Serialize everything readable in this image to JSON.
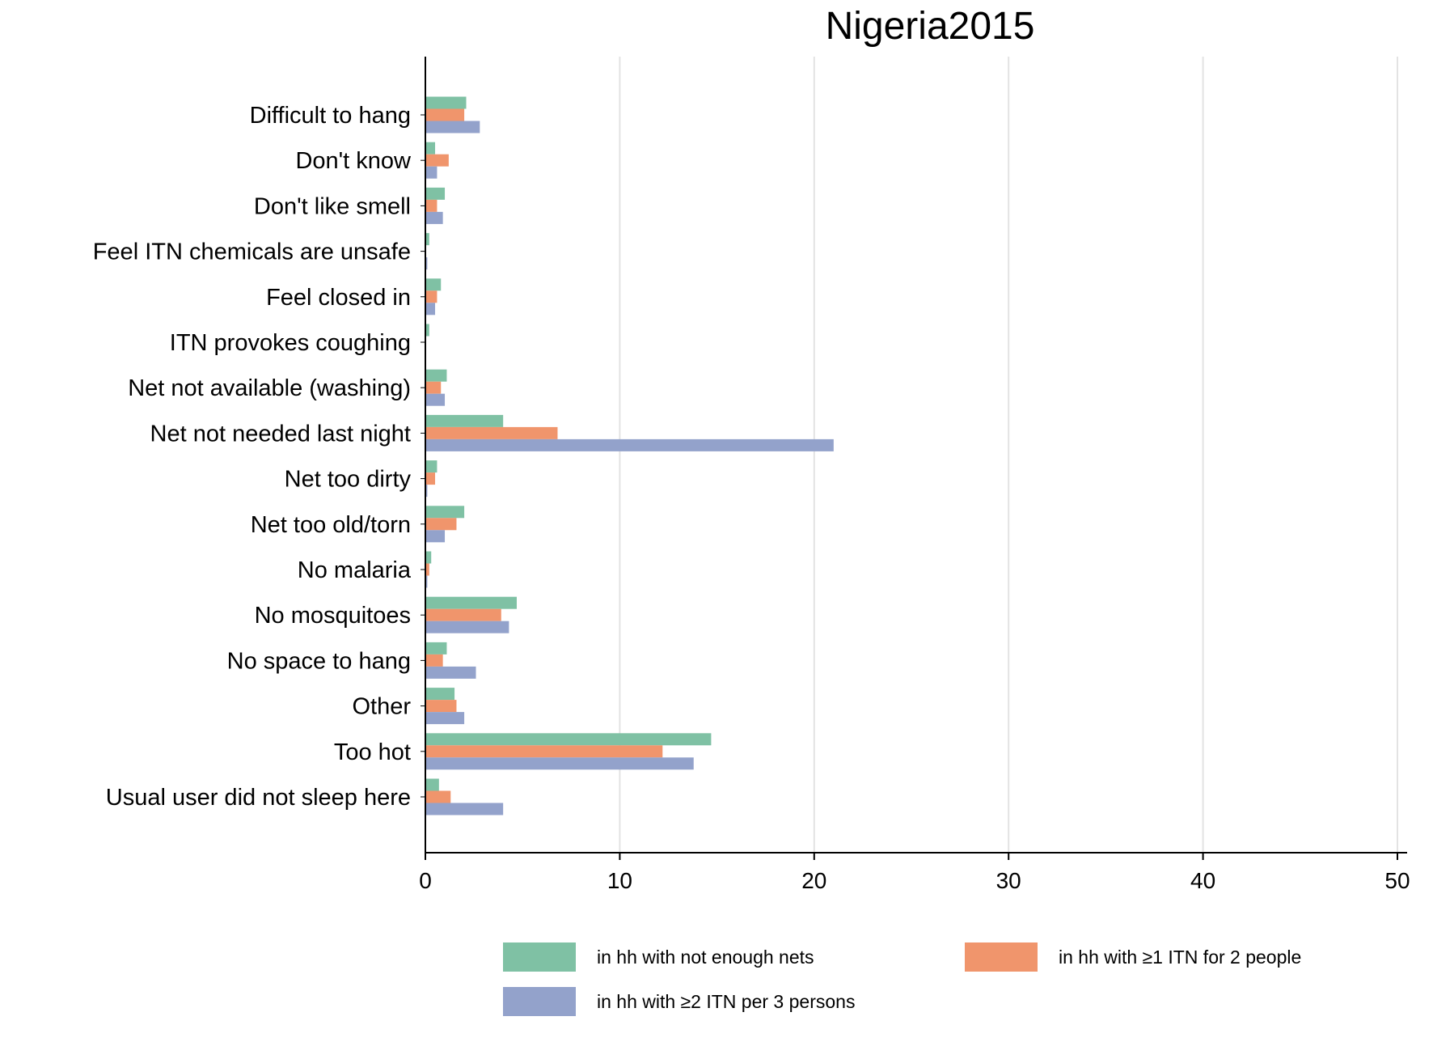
{
  "chart_data": {
    "type": "bar",
    "orientation": "horizontal",
    "title": "Nigeria2015",
    "xlabel": "",
    "ylabel": "",
    "xlim": [
      0,
      50
    ],
    "xticks": [
      "0",
      "10",
      "20",
      "30",
      "40",
      "50"
    ],
    "grid": "vertical",
    "legend_position": "bottom",
    "categories": [
      "Difficult to hang",
      "Don't know",
      "Don't like smell",
      "Feel ITN chemicals are unsafe",
      "Feel closed in",
      "ITN provokes coughing",
      "Net not available (washing)",
      "Net not needed last night",
      "Net too dirty",
      "Net too old/torn",
      "No malaria",
      "No mosquitoes",
      "No space to hang",
      "Other",
      "Too hot",
      "Usual user did not sleep here"
    ],
    "series": [
      {
        "name": "in hh with not enough nets",
        "color": "#7fc1a4",
        "values": [
          2.1,
          0.5,
          1.0,
          0.2,
          0.8,
          0.2,
          1.1,
          4.0,
          0.6,
          2.0,
          0.3,
          4.7,
          1.1,
          1.5,
          14.7,
          0.7
        ]
      },
      {
        "name": "in hh with ≥1 ITN for 2 people",
        "color": "#f0956c",
        "values": [
          2.0,
          1.2,
          0.6,
          0.0,
          0.6,
          0.0,
          0.8,
          6.8,
          0.5,
          1.6,
          0.2,
          3.9,
          0.9,
          1.6,
          12.2,
          1.3
        ]
      },
      {
        "name": "in hh with ≥2 ITN per 3 persons",
        "color": "#93a2cb",
        "values": [
          2.8,
          0.6,
          0.9,
          0.1,
          0.5,
          0.0,
          1.0,
          21.0,
          0.1,
          1.0,
          0.1,
          4.3,
          2.6,
          2.0,
          13.8,
          4.0
        ]
      }
    ]
  }
}
